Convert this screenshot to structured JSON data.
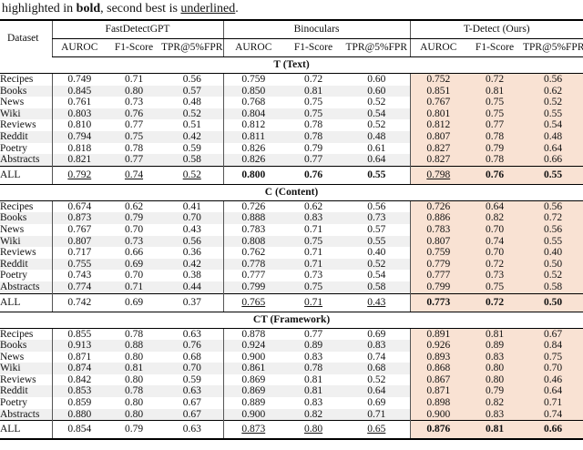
{
  "caption": {
    "prefix": "highlighted in ",
    "bold_word": "bold",
    "middle": ", second best is ",
    "underlined_word": "underlined",
    "suffix": "."
  },
  "colors": {
    "ours_bg": "#f9e2d3",
    "zebra_bg": "#f0f0f0"
  },
  "table": {
    "dataset_header": "Dataset",
    "groups": [
      {
        "label": "FastDetectGPT"
      },
      {
        "label": "Binoculars"
      },
      {
        "label": "T-Detect (Ours)"
      }
    ],
    "metric_headers": [
      "AUROC",
      "F1-Score",
      "TPR@5%FPR"
    ],
    "sections": [
      {
        "title": "T (Text)",
        "rows": [
          {
            "dataset": "Recipes",
            "values": [
              "0.749",
              "0.71",
              "0.56",
              "0.759",
              "0.72",
              "0.60",
              "0.752",
              "0.72",
              "0.56"
            ]
          },
          {
            "dataset": "Books",
            "values": [
              "0.845",
              "0.80",
              "0.57",
              "0.850",
              "0.81",
              "0.60",
              "0.851",
              "0.81",
              "0.62"
            ]
          },
          {
            "dataset": "News",
            "values": [
              "0.761",
              "0.73",
              "0.48",
              "0.768",
              "0.75",
              "0.52",
              "0.767",
              "0.75",
              "0.52"
            ]
          },
          {
            "dataset": "Wiki",
            "values": [
              "0.803",
              "0.76",
              "0.52",
              "0.804",
              "0.75",
              "0.54",
              "0.801",
              "0.75",
              "0.55"
            ]
          },
          {
            "dataset": "Reviews",
            "values": [
              "0.810",
              "0.77",
              "0.51",
              "0.812",
              "0.78",
              "0.52",
              "0.812",
              "0.77",
              "0.54"
            ]
          },
          {
            "dataset": "Reddit",
            "values": [
              "0.794",
              "0.75",
              "0.42",
              "0.811",
              "0.78",
              "0.48",
              "0.807",
              "0.78",
              "0.48"
            ]
          },
          {
            "dataset": "Poetry",
            "values": [
              "0.818",
              "0.78",
              "0.59",
              "0.826",
              "0.79",
              "0.61",
              "0.827",
              "0.79",
              "0.64"
            ]
          },
          {
            "dataset": "Abstracts",
            "values": [
              "0.821",
              "0.77",
              "0.58",
              "0.826",
              "0.77",
              "0.64",
              "0.827",
              "0.78",
              "0.66"
            ]
          }
        ],
        "all_row": {
          "dataset": "ALL",
          "values": [
            "0.792",
            "0.74",
            "0.52",
            "0.800",
            "0.76",
            "0.55",
            "0.798",
            "0.76",
            "0.55"
          ],
          "styles": [
            "u",
            "u",
            "u",
            "b",
            "b",
            "b",
            "u",
            "b",
            "b"
          ]
        }
      },
      {
        "title": "C (Content)",
        "rows": [
          {
            "dataset": "Recipes",
            "values": [
              "0.674",
              "0.62",
              "0.41",
              "0.726",
              "0.62",
              "0.56",
              "0.726",
              "0.64",
              "0.56"
            ]
          },
          {
            "dataset": "Books",
            "values": [
              "0.873",
              "0.79",
              "0.70",
              "0.888",
              "0.83",
              "0.73",
              "0.886",
              "0.82",
              "0.72"
            ]
          },
          {
            "dataset": "News",
            "values": [
              "0.767",
              "0.70",
              "0.43",
              "0.783",
              "0.71",
              "0.57",
              "0.783",
              "0.70",
              "0.56"
            ]
          },
          {
            "dataset": "Wiki",
            "values": [
              "0.807",
              "0.73",
              "0.56",
              "0.808",
              "0.75",
              "0.55",
              "0.807",
              "0.74",
              "0.55"
            ]
          },
          {
            "dataset": "Reviews",
            "values": [
              "0.717",
              "0.66",
              "0.36",
              "0.762",
              "0.71",
              "0.40",
              "0.759",
              "0.70",
              "0.40"
            ]
          },
          {
            "dataset": "Reddit",
            "values": [
              "0.755",
              "0.69",
              "0.42",
              "0.778",
              "0.71",
              "0.52",
              "0.779",
              "0.72",
              "0.50"
            ]
          },
          {
            "dataset": "Poetry",
            "values": [
              "0.743",
              "0.70",
              "0.38",
              "0.777",
              "0.73",
              "0.54",
              "0.777",
              "0.73",
              "0.52"
            ]
          },
          {
            "dataset": "Abstracts",
            "values": [
              "0.774",
              "0.71",
              "0.44",
              "0.799",
              "0.75",
              "0.58",
              "0.799",
              "0.75",
              "0.58"
            ]
          }
        ],
        "all_row": {
          "dataset": "ALL",
          "values": [
            "0.742",
            "0.69",
            "0.37",
            "0.765",
            "0.71",
            "0.43",
            "0.773",
            "0.72",
            "0.50"
          ],
          "styles": [
            "",
            "",
            "",
            "u",
            "u",
            "u",
            "b",
            "b",
            "b"
          ]
        }
      },
      {
        "title": "CT (Framework)",
        "rows": [
          {
            "dataset": "Recipes",
            "values": [
              "0.855",
              "0.78",
              "0.63",
              "0.878",
              "0.77",
              "0.69",
              "0.891",
              "0.81",
              "0.67"
            ]
          },
          {
            "dataset": "Books",
            "values": [
              "0.913",
              "0.88",
              "0.76",
              "0.924",
              "0.89",
              "0.83",
              "0.926",
              "0.89",
              "0.84"
            ]
          },
          {
            "dataset": "News",
            "values": [
              "0.871",
              "0.80",
              "0.68",
              "0.900",
              "0.83",
              "0.74",
              "0.893",
              "0.83",
              "0.75"
            ]
          },
          {
            "dataset": "Wiki",
            "values": [
              "0.874",
              "0.81",
              "0.70",
              "0.861",
              "0.78",
              "0.68",
              "0.868",
              "0.80",
              "0.70"
            ]
          },
          {
            "dataset": "Reviews",
            "values": [
              "0.842",
              "0.80",
              "0.59",
              "0.869",
              "0.81",
              "0.52",
              "0.867",
              "0.80",
              "0.46"
            ]
          },
          {
            "dataset": "Reddit",
            "values": [
              "0.853",
              "0.78",
              "0.63",
              "0.869",
              "0.81",
              "0.64",
              "0.871",
              "0.79",
              "0.64"
            ]
          },
          {
            "dataset": "Poetry",
            "values": [
              "0.859",
              "0.80",
              "0.67",
              "0.889",
              "0.83",
              "0.69",
              "0.898",
              "0.82",
              "0.71"
            ]
          },
          {
            "dataset": "Abstracts",
            "values": [
              "0.880",
              "0.80",
              "0.67",
              "0.900",
              "0.82",
              "0.71",
              "0.900",
              "0.83",
              "0.74"
            ]
          }
        ],
        "all_row": {
          "dataset": "ALL",
          "values": [
            "0.854",
            "0.79",
            "0.63",
            "0.873",
            "0.80",
            "0.65",
            "0.876",
            "0.81",
            "0.66"
          ],
          "styles": [
            "",
            "",
            "",
            "u",
            "u",
            "u",
            "b",
            "b",
            "b"
          ]
        }
      }
    ]
  }
}
